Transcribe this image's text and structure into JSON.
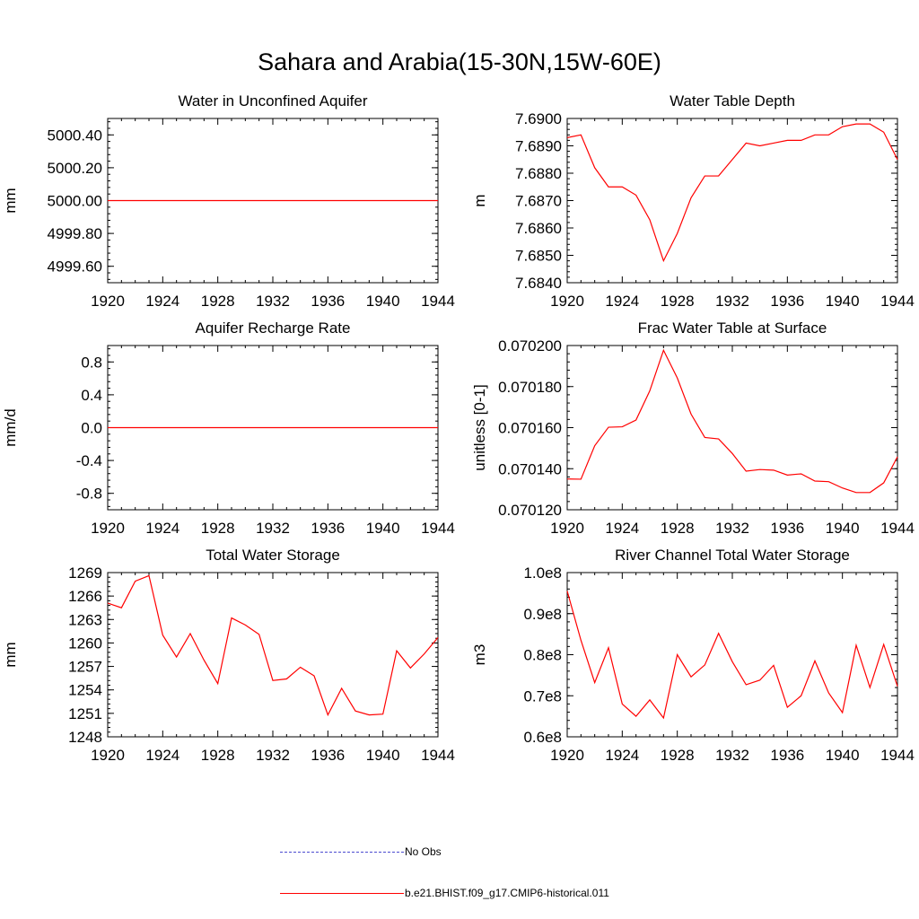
{
  "title": "Sahara and Arabia(15-30N,15W-60E)",
  "colors": {
    "model": "#ff0000",
    "obs": "#4b4bd0",
    "axis": "#000000"
  },
  "legend": {
    "obs_label": "No Obs",
    "model_label": "b.e21.BHIST.f09_g17.CMIP6-historical.011"
  },
  "chart_data": [
    {
      "type": "line",
      "title": "Water in Unconfined Aquifer",
      "ylabel": "mm",
      "xlim": [
        1920,
        1944
      ],
      "ylim": [
        4999.5,
        5000.5
      ],
      "xticks": [
        1920,
        1924,
        1928,
        1932,
        1936,
        1940,
        1944
      ],
      "yticks": [
        4999.6,
        4999.8,
        5000.0,
        5000.2,
        5000.4
      ],
      "ytick_labels": [
        "4999.60",
        "4999.80",
        "5000.00",
        "5000.20",
        "5000.40"
      ],
      "series": [
        {
          "x": [
            1920,
            1944
          ],
          "values": [
            5000.0,
            5000.0
          ]
        }
      ]
    },
    {
      "type": "line",
      "title": "Water Table Depth",
      "ylabel": "m",
      "xlim": [
        1920,
        1944
      ],
      "ylim": [
        7.684,
        7.69
      ],
      "xticks": [
        1920,
        1924,
        1928,
        1932,
        1936,
        1940,
        1944
      ],
      "yticks": [
        7.684,
        7.685,
        7.686,
        7.687,
        7.688,
        7.689,
        7.69
      ],
      "ytick_labels": [
        "7.6840",
        "7.6850",
        "7.6860",
        "7.6870",
        "7.6880",
        "7.6890",
        "7.6900"
      ],
      "series": [
        {
          "x": [
            1920,
            1921,
            1922,
            1923,
            1924,
            1925,
            1926,
            1927,
            1928,
            1929,
            1930,
            1931,
            1932,
            1933,
            1934,
            1935,
            1936,
            1937,
            1938,
            1939,
            1940,
            1941,
            1942,
            1943,
            1944
          ],
          "values": [
            7.6893,
            7.6894,
            7.6882,
            7.6875,
            7.6875,
            7.6872,
            7.6863,
            7.6848,
            7.6858,
            7.6871,
            7.6879,
            7.6879,
            7.6885,
            7.6891,
            7.689,
            7.6891,
            7.6892,
            7.6892,
            7.6894,
            7.6894,
            7.6897,
            7.6898,
            7.6898,
            7.6895,
            7.6885
          ]
        }
      ]
    },
    {
      "type": "line",
      "title": "Aquifer Recharge Rate",
      "ylabel": "mm/d",
      "xlim": [
        1920,
        1944
      ],
      "ylim": [
        -1.0,
        1.0
      ],
      "xticks": [
        1920,
        1924,
        1928,
        1932,
        1936,
        1940,
        1944
      ],
      "yticks": [
        -0.8,
        -0.4,
        0.0,
        0.4,
        0.8
      ],
      "ytick_labels": [
        "-0.8",
        "-0.4",
        "0.0",
        "0.4",
        "0.8"
      ],
      "series": [
        {
          "x": [
            1920,
            1944
          ],
          "values": [
            0.0,
            0.0
          ]
        }
      ]
    },
    {
      "type": "line",
      "title": "Frac Water Table at Surface",
      "ylabel": "unitless [0-1]",
      "xlim": [
        1920,
        1944
      ],
      "ylim": [
        0.07012,
        0.0702
      ],
      "xticks": [
        1920,
        1924,
        1928,
        1932,
        1936,
        1940,
        1944
      ],
      "yticks": [
        0.07012,
        0.07014,
        0.07016,
        0.07018,
        0.0702
      ],
      "ytick_labels": [
        "0.070120",
        "0.070140",
        "0.070160",
        "0.070180",
        "0.070200"
      ],
      "series": [
        {
          "x": [
            1920,
            1921,
            1922,
            1923,
            1924,
            1925,
            1926,
            1927,
            1928,
            1929,
            1930,
            1931,
            1932,
            1933,
            1934,
            1935,
            1936,
            1937,
            1938,
            1939,
            1940,
            1941,
            1942,
            1943,
            1944
          ],
          "values": [
            0.070135,
            0.0701349,
            0.0701512,
            0.0701602,
            0.0701604,
            0.0701637,
            0.0701779,
            0.0701977,
            0.0701842,
            0.0701666,
            0.0701552,
            0.0701545,
            0.0701474,
            0.0701388,
            0.0701396,
            0.0701393,
            0.0701369,
            0.0701375,
            0.070134,
            0.0701337,
            0.0701306,
            0.0701284,
            0.0701284,
            0.0701331,
            0.0701458
          ]
        }
      ]
    },
    {
      "type": "line",
      "title": "Total Water Storage",
      "ylabel": "mm",
      "xlim": [
        1920,
        1944
      ],
      "ylim": [
        1248,
        1269
      ],
      "xticks": [
        1920,
        1924,
        1928,
        1932,
        1936,
        1940,
        1944
      ],
      "yticks": [
        1248,
        1251,
        1254,
        1257,
        1260,
        1263,
        1266,
        1269
      ],
      "ytick_labels": [
        "1248",
        "1251",
        "1254",
        "1257",
        "1260",
        "1263",
        "1266",
        "1269"
      ],
      "series": [
        {
          "x": [
            1920,
            1921,
            1922,
            1923,
            1924,
            1925,
            1926,
            1927,
            1928,
            1929,
            1930,
            1931,
            1932,
            1933,
            1934,
            1935,
            1936,
            1937,
            1938,
            1939,
            1940,
            1941,
            1942,
            1943,
            1944
          ],
          "values": [
            1265.1,
            1264.5,
            1267.9,
            1268.6,
            1261.0,
            1258.2,
            1261.2,
            1257.8,
            1254.8,
            1263.2,
            1262.3,
            1261.1,
            1255.2,
            1255.4,
            1256.9,
            1255.8,
            1250.8,
            1254.2,
            1251.3,
            1250.8,
            1250.9,
            1259.0,
            1256.8,
            1258.6,
            1260.7
          ]
        }
      ]
    },
    {
      "type": "line",
      "title": "River Channel Total Water Storage",
      "ylabel": "m3",
      "xlim": [
        1920,
        1944
      ],
      "ylim": [
        60000000,
        100000000
      ],
      "xticks": [
        1920,
        1924,
        1928,
        1932,
        1936,
        1940,
        1944
      ],
      "yticks": [
        60000000,
        70000000,
        80000000,
        90000000,
        100000000
      ],
      "ytick_labels": [
        "0.6e8",
        "0.7e8",
        "0.8e8",
        "0.9e8",
        "1.0e8"
      ],
      "series": [
        {
          "x": [
            1920,
            1921,
            1922,
            1923,
            1924,
            1925,
            1926,
            1927,
            1928,
            1929,
            1930,
            1931,
            1932,
            1933,
            1934,
            1935,
            1936,
            1937,
            1938,
            1939,
            1940,
            1941,
            1942,
            1943,
            1944
          ],
          "values": [
            95500000,
            83500000,
            73200000,
            81700000,
            68000000,
            65000000,
            69000000,
            64600000,
            80000000,
            74600000,
            77500000,
            85200000,
            78300000,
            72700000,
            73800000,
            77400000,
            67200000,
            70000000,
            78500000,
            70700000,
            65900000,
            82300000,
            72000000,
            82500000,
            72300000
          ]
        }
      ]
    }
  ]
}
